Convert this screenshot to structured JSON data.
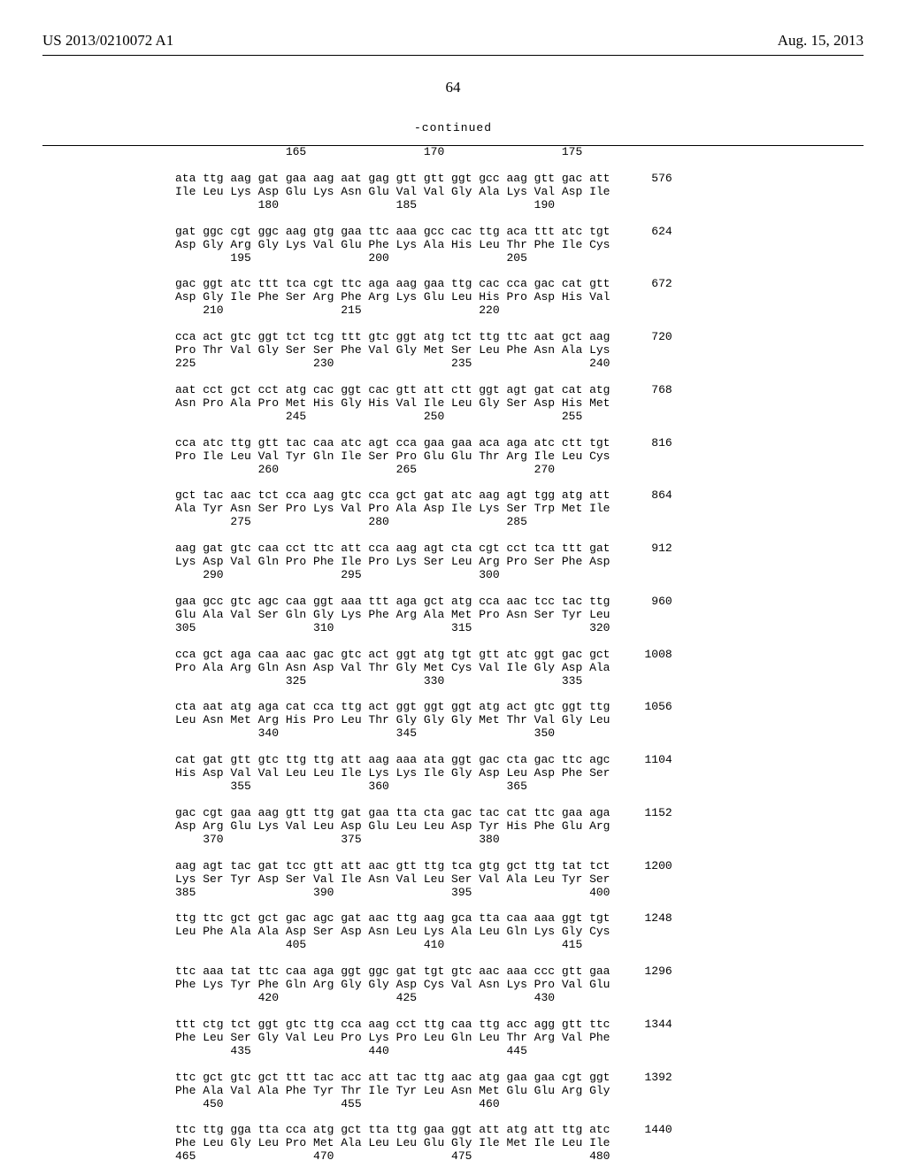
{
  "header": {
    "pubnum": "US 2013/0210072 A1",
    "pubdate": "Aug. 15, 2013"
  },
  "pagenum": "64",
  "continued": "-continued",
  "seqlines": [
    "                165                 170                 175",
    "",
    "ata ttg aag gat gaa aag aat gag gtt gtt ggt gcc aag gtt gac att      576",
    "Ile Leu Lys Asp Glu Lys Asn Glu Val Val Gly Ala Lys Val Asp Ile",
    "            180                 185                 190",
    "",
    "gat ggc cgt ggc aag gtg gaa ttc aaa gcc cac ttg aca ttt atc tgt      624",
    "Asp Gly Arg Gly Lys Val Glu Phe Lys Ala His Leu Thr Phe Ile Cys",
    "        195                 200                 205",
    "",
    "gac ggt atc ttt tca cgt ttc aga aag gaa ttg cac cca gac cat gtt      672",
    "Asp Gly Ile Phe Ser Arg Phe Arg Lys Glu Leu His Pro Asp His Val",
    "    210                 215                 220",
    "",
    "cca act gtc ggt tct tcg ttt gtc ggt atg tct ttg ttc aat gct aag      720",
    "Pro Thr Val Gly Ser Ser Phe Val Gly Met Ser Leu Phe Asn Ala Lys",
    "225                 230                 235                 240",
    "",
    "aat cct gct cct atg cac ggt cac gtt att ctt ggt agt gat cat atg      768",
    "Asn Pro Ala Pro Met His Gly His Val Ile Leu Gly Ser Asp His Met",
    "                245                 250                 255",
    "",
    "cca atc ttg gtt tac caa atc agt cca gaa gaa aca aga atc ctt tgt      816",
    "Pro Ile Leu Val Tyr Gln Ile Ser Pro Glu Glu Thr Arg Ile Leu Cys",
    "            260                 265                 270",
    "",
    "gct tac aac tct cca aag gtc cca gct gat atc aag agt tgg atg att      864",
    "Ala Tyr Asn Ser Pro Lys Val Pro Ala Asp Ile Lys Ser Trp Met Ile",
    "        275                 280                 285",
    "",
    "aag gat gtc caa cct ttc att cca aag agt cta cgt cct tca ttt gat      912",
    "Lys Asp Val Gln Pro Phe Ile Pro Lys Ser Leu Arg Pro Ser Phe Asp",
    "    290                 295                 300",
    "",
    "gaa gcc gtc agc caa ggt aaa ttt aga gct atg cca aac tcc tac ttg      960",
    "Glu Ala Val Ser Gln Gly Lys Phe Arg Ala Met Pro Asn Ser Tyr Leu",
    "305                 310                 315                 320",
    "",
    "cca gct aga caa aac gac gtc act ggt atg tgt gtt atc ggt gac gct     1008",
    "Pro Ala Arg Gln Asn Asp Val Thr Gly Met Cys Val Ile Gly Asp Ala",
    "                325                 330                 335",
    "",
    "cta aat atg aga cat cca ttg act ggt ggt ggt atg act gtc ggt ttg     1056",
    "Leu Asn Met Arg His Pro Leu Thr Gly Gly Gly Met Thr Val Gly Leu",
    "            340                 345                 350",
    "",
    "cat gat gtt gtc ttg ttg att aag aaa ata ggt gac cta gac ttc agc     1104",
    "His Asp Val Val Leu Leu Ile Lys Lys Ile Gly Asp Leu Asp Phe Ser",
    "        355                 360                 365",
    "",
    "gac cgt gaa aag gtt ttg gat gaa tta cta gac tac cat ttc gaa aga     1152",
    "Asp Arg Glu Lys Val Leu Asp Glu Leu Leu Asp Tyr His Phe Glu Arg",
    "    370                 375                 380",
    "",
    "aag agt tac gat tcc gtt att aac gtt ttg tca gtg gct ttg tat tct     1200",
    "Lys Ser Tyr Asp Ser Val Ile Asn Val Leu Ser Val Ala Leu Tyr Ser",
    "385                 390                 395                 400",
    "",
    "ttg ttc gct gct gac agc gat aac ttg aag gca tta caa aaa ggt tgt     1248",
    "Leu Phe Ala Ala Asp Ser Asp Asn Leu Lys Ala Leu Gln Lys Gly Cys",
    "                405                 410                 415",
    "",
    "ttc aaa tat ttc caa aga ggt ggc gat tgt gtc aac aaa ccc gtt gaa     1296",
    "Phe Lys Tyr Phe Gln Arg Gly Gly Asp Cys Val Asn Lys Pro Val Glu",
    "            420                 425                 430",
    "",
    "ttt ctg tct ggt gtc ttg cca aag cct ttg caa ttg acc agg gtt ttc     1344",
    "Phe Leu Ser Gly Val Leu Pro Lys Pro Leu Gln Leu Thr Arg Val Phe",
    "        435                 440                 445",
    "",
    "ttc gct gtc gct ttt tac acc att tac ttg aac atg gaa gaa cgt ggt     1392",
    "Phe Ala Val Ala Phe Tyr Thr Ile Tyr Leu Asn Met Glu Glu Arg Gly",
    "    450                 455                 460",
    "",
    "ttc ttg gga tta cca atg gct tta ttg gaa ggt att atg att ttg atc     1440",
    "Phe Leu Gly Leu Pro Met Ala Leu Leu Glu Gly Ile Met Ile Leu Ile",
    "465                 470                 475                 480"
  ]
}
